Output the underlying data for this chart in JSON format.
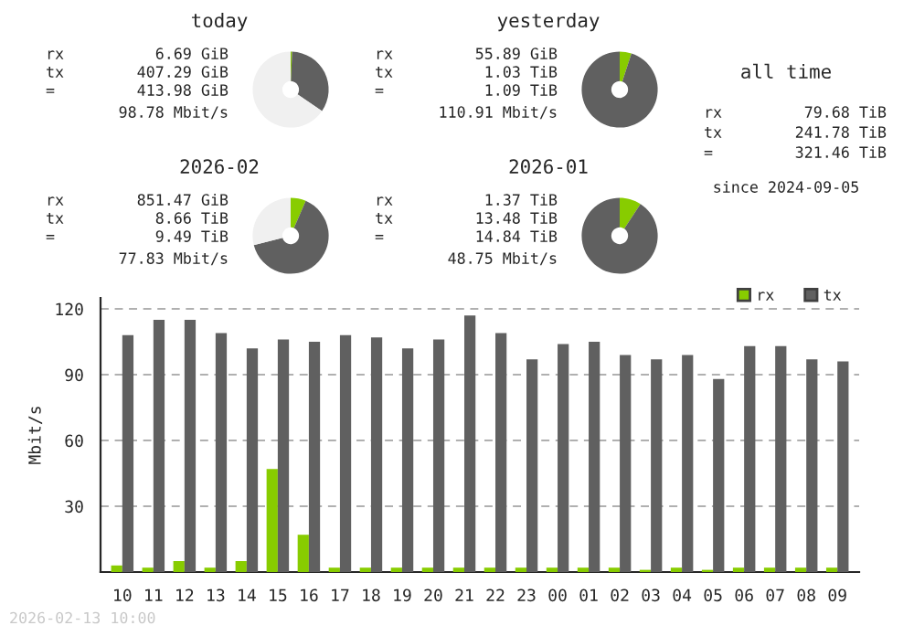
{
  "chart_data": [
    {
      "type": "donut",
      "title": "today",
      "categories": [
        null,
        null,
        null
      ],
      "values": [
        0.6,
        34,
        65.4
      ],
      "colors": [
        "#88cc00",
        "#606060",
        "#f0f0f0"
      ],
      "annotations": [
        "rx",
        "6.69 GiB",
        "tx",
        "407.29 GiB",
        "=",
        "413.98 GiB",
        "98.78 Mbit/s"
      ]
    },
    {
      "type": "donut",
      "title": "yesterday",
      "categories": [
        null,
        null
      ],
      "values": [
        5,
        95
      ],
      "colors": [
        "#88cc00",
        "#606060"
      ],
      "annotations": [
        "rx",
        "55.89 GiB",
        "tx",
        "1.03 TiB",
        "=",
        "1.09 TiB",
        "110.91 Mbit/s"
      ]
    },
    {
      "type": "other",
      "title": "all time",
      "annotations": [
        "rx",
        "79.68 TiB",
        "tx",
        "241.78 TiB",
        "=",
        "321.46 TiB",
        "since 2024-09-05"
      ]
    },
    {
      "type": "donut",
      "title": "2026-02",
      "categories": [
        null,
        null,
        null
      ],
      "values": [
        6.5,
        64.5,
        29
      ],
      "colors": [
        "#88cc00",
        "#606060",
        "#f0f0f0"
      ],
      "annotations": [
        "rx",
        "851.47 GiB",
        "tx",
        "8.66 TiB",
        "=",
        "9.49 TiB",
        "77.83 Mbit/s"
      ]
    },
    {
      "type": "donut",
      "title": "2026-01",
      "categories": [
        null,
        null
      ],
      "values": [
        9.2,
        90.8
      ],
      "colors": [
        "#88cc00",
        "#606060"
      ],
      "annotations": [
        "rx",
        "1.37 TiB",
        "tx",
        "13.48 TiB",
        "=",
        "14.84 TiB",
        "48.75 Mbit/s"
      ]
    },
    {
      "type": "bar",
      "ylabel": "Mbit/s",
      "categories": [
        "10",
        "11",
        "12",
        "13",
        "14",
        "15",
        "16",
        "17",
        "18",
        "19",
        "20",
        "21",
        "22",
        "23",
        "00",
        "01",
        "02",
        "03",
        "04",
        "05",
        "06",
        "07",
        "08",
        "09"
      ],
      "series": [
        {
          "name": "rx",
          "color": "#88cc00",
          "values": [
            3,
            2,
            5,
            2,
            5,
            47,
            17,
            2,
            2,
            2,
            2,
            2,
            2,
            2,
            2,
            2,
            2,
            1,
            2,
            1,
            2,
            2,
            2,
            2
          ]
        },
        {
          "name": "tx",
          "color": "#606060",
          "values": [
            108,
            115,
            115,
            109,
            102,
            106,
            105,
            108,
            107,
            102,
            106,
            117,
            109,
            97,
            104,
            105,
            99,
            97,
            99,
            88,
            103,
            103,
            97,
            96
          ]
        }
      ],
      "ylim": [
        0,
        125
      ],
      "yticks": [
        {
          "value": 0,
          "label": null
        },
        30,
        60,
        90,
        120
      ],
      "grid": "y",
      "legend": "top right",
      "annotations": [
        "2026-02-13 10:00"
      ]
    }
  ]
}
